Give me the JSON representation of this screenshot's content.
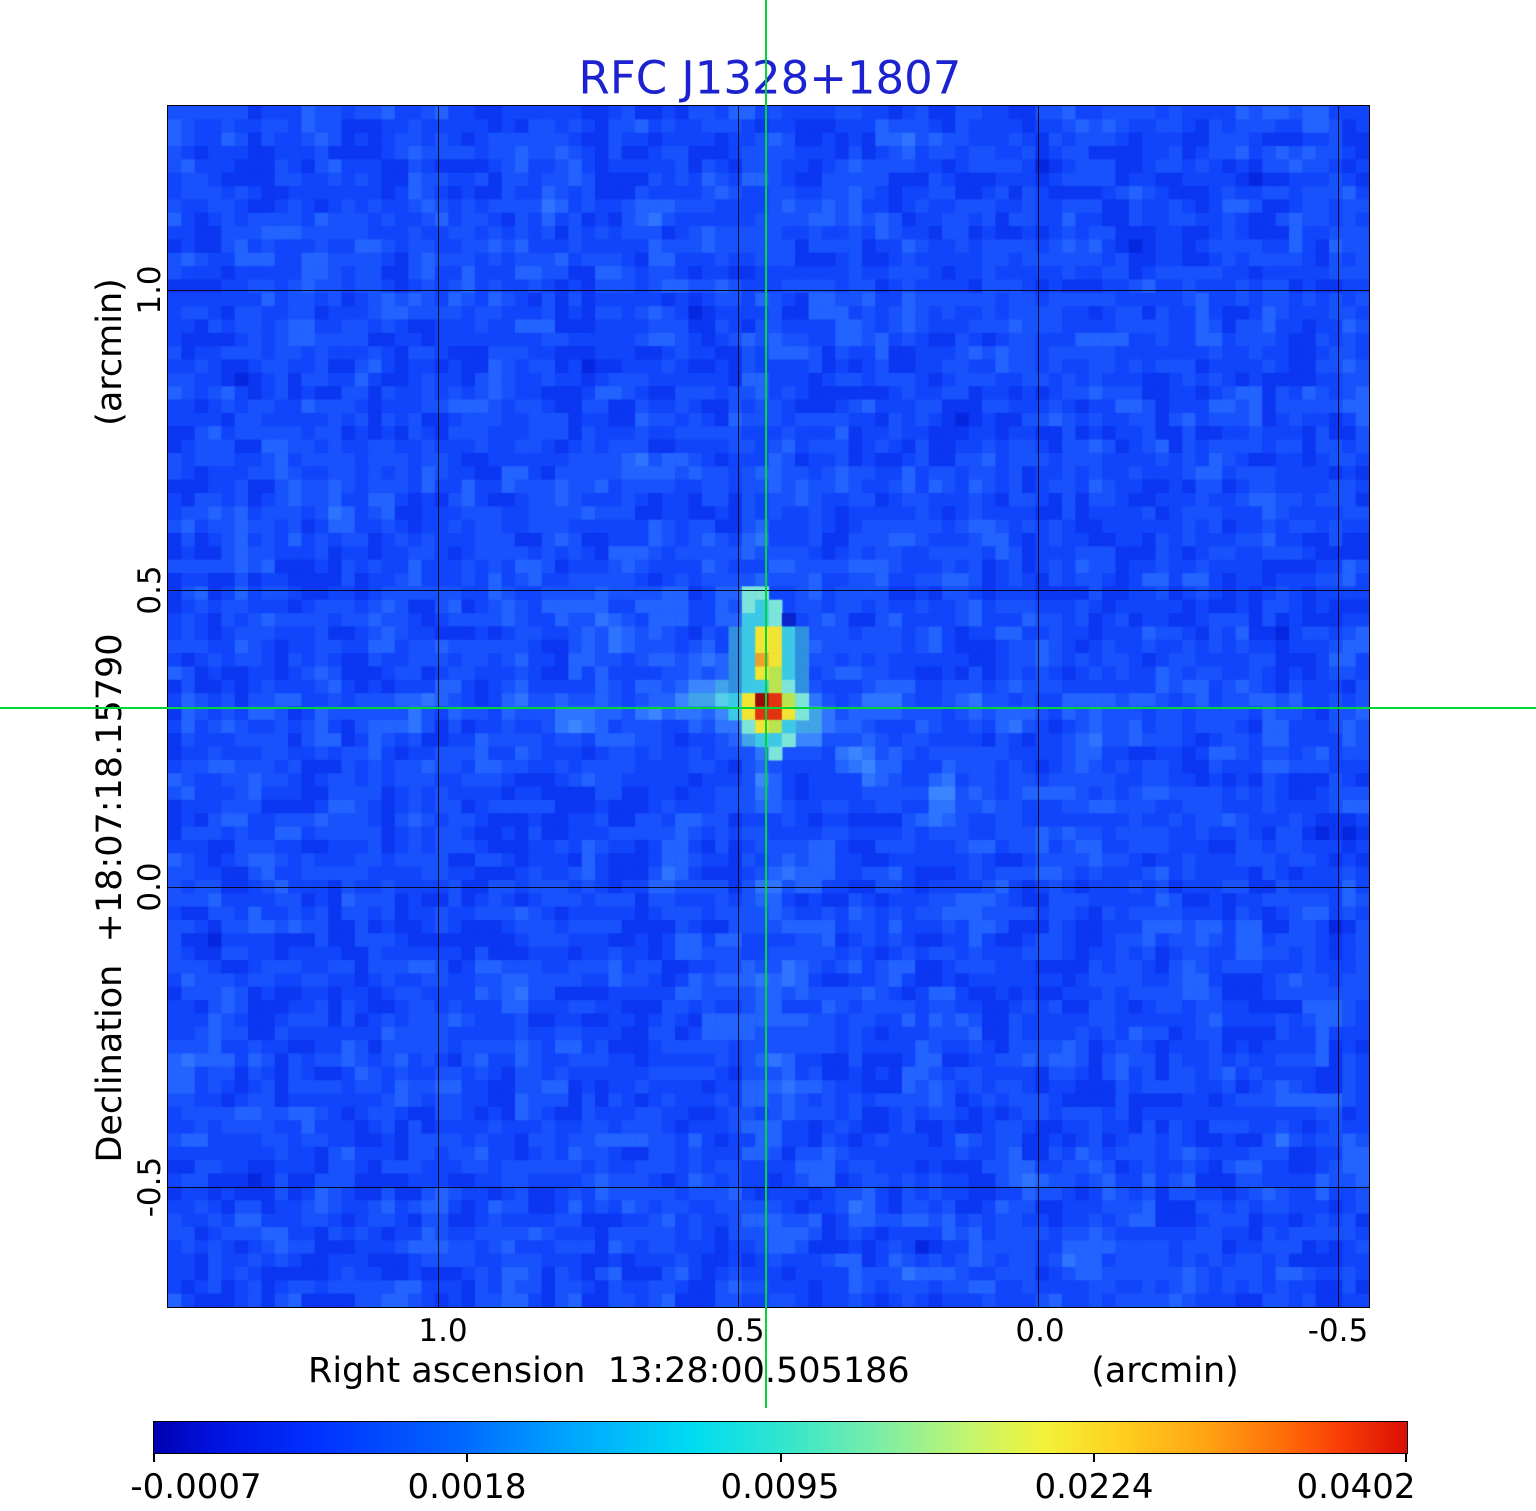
{
  "title": {
    "text": "RFC J1328+1807"
  },
  "colors": {
    "title": "#1c22cf",
    "crosshair": "#00d639",
    "grid": "#000000",
    "frame": "#000000"
  },
  "axes": {
    "x": {
      "title": "Right ascension  13:28:00.505186",
      "unit": "(arcmin)",
      "ticks": [
        "1.0",
        "0.5",
        "0.0",
        "-0.5"
      ]
    },
    "y": {
      "title": "Declination  +18:07:18.15790",
      "unit": "(arcmin)",
      "ticks": [
        "1.0",
        "0.5",
        "0.0",
        "-0.5"
      ]
    }
  },
  "colorbar": {
    "tick_labels": [
      "-0.0007",
      "0.0018",
      "0.0095",
      "0.0224",
      "0.0402"
    ]
  },
  "chart_data": {
    "type": "heatmap",
    "title": "RFC J1328+1807",
    "xlabel": "Right ascension 13:28:00.505186 (arcmin)",
    "ylabel": "Declination +18:07:18.15790 (arcmin)",
    "x_ticks_arcmin": [
      1.0,
      0.5,
      0.0,
      -0.5
    ],
    "y_ticks_arcmin": [
      1.0,
      0.5,
      0.0,
      -0.5
    ],
    "x_range_arcmin": [
      1.45,
      -0.56
    ],
    "y_range_arcmin": [
      -0.7,
      1.31
    ],
    "grid": true,
    "colorbar_scale_ticks": [
      -0.0007,
      0.0018,
      0.0095,
      0.0224,
      0.0402
    ],
    "scale": "nonlinear",
    "peak_value": 0.0402,
    "source_position_arcmin": {
      "x": 0.45,
      "y": 0.3
    },
    "source_structure": "two-component blob elongated north-south; brighter southern peak at crosshair, fainter yellow northern component, cyan halo",
    "grid_cells": 90,
    "palette": {
      "h": "#2f8fe0",
      "c": "#7de4da",
      "C": "#3cc9e6",
      "n": "#0a23cf",
      "G": "#b9e44f",
      "Y": "#f2e433",
      "O": "#f1a028",
      "R": "#e23311",
      "r": "#dd5214",
      "D": "#990b04"
    },
    "source_pixels": {
      "col0": 41,
      "row0": 36,
      "rows": [
        "..cc....",
        "..cCc...",
        "..CCcn..",
        ".hCYYCh.",
        ".hCYYCh.",
        ".hCOYCh.",
        ".hCYGCh.",
        ".hCCGch.",
        ".CYDRGc.",
        ".CYRRYc.",
        "..cYGC..",
        "...CCc..",
        "....c..."
      ]
    }
  }
}
